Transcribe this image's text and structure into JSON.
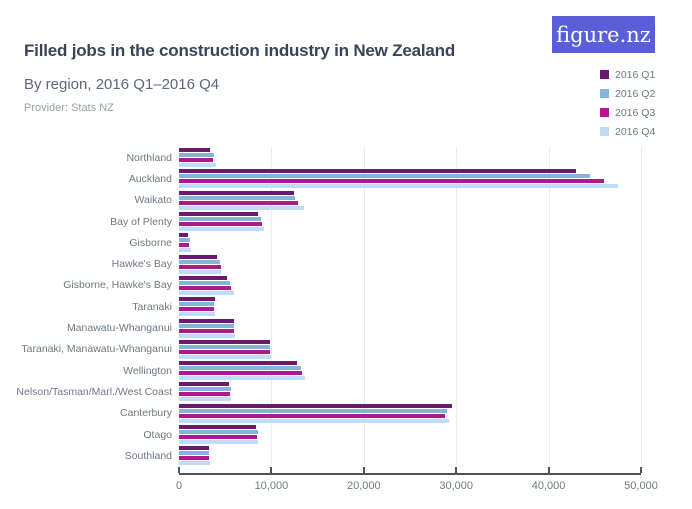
{
  "header": {
    "title": "Filled jobs in the construction industry in New Zealand",
    "subtitle": "By region, 2016 Q1–2016 Q4",
    "provider": "Provider: Stats NZ",
    "logo_text": "figure.nz"
  },
  "colors": {
    "logo_bg": "#5A5ED8",
    "title_text": "#3A4458",
    "axis": "#4E535A",
    "gridline": "#ECE9F1",
    "label_text": "#6E7883"
  },
  "chart_data": {
    "type": "bar",
    "orientation": "horizontal",
    "title": "Filled jobs in the construction industry in New Zealand",
    "subtitle": "By region, 2016 Q1–2016 Q4",
    "xlabel": "",
    "ylabel": "",
    "grid": true,
    "legend_position": "top-right",
    "xlim": [
      0,
      50000
    ],
    "x_tick_values": [
      0,
      10000,
      20000,
      30000,
      40000,
      50000
    ],
    "x_tick_labels": [
      "0",
      "10,000",
      "20,000",
      "30,000",
      "40,000",
      "50,000"
    ],
    "categories": [
      "Northland",
      "Auckland",
      "Waikato",
      "Bay of Plenty",
      "Gisborne",
      "Hawke's Bay",
      "Gisborne, Hawke's Bay",
      "Taranaki",
      "Manawatu-Whanganui",
      "Taranaki, Manawatu-Whanganui",
      "Wellington",
      "Nelson/Tasman/Marl./West Coast",
      "Canterbury",
      "Otago",
      "Southland"
    ],
    "series": [
      {
        "name": "2016 Q1",
        "color": "#6A1B6F",
        "values": [
          3400,
          43000,
          12400,
          8600,
          1000,
          4100,
          5200,
          3900,
          5900,
          9800,
          12800,
          5400,
          29500,
          8300,
          3200
        ]
      },
      {
        "name": "2016 Q2",
        "color": "#86B4DB",
        "values": [
          3800,
          44500,
          12600,
          8900,
          1200,
          4400,
          5500,
          3800,
          6000,
          9800,
          13200,
          5600,
          29000,
          8500,
          3300
        ]
      },
      {
        "name": "2016 Q3",
        "color": "#AD1A8D",
        "values": [
          3700,
          46000,
          12900,
          9000,
          1100,
          4500,
          5600,
          3800,
          5900,
          9900,
          13300,
          5500,
          28800,
          8400,
          3200
        ]
      },
      {
        "name": "2016 Q4",
        "color": "#BFDCF3",
        "values": [
          4000,
          47500,
          13500,
          9200,
          1300,
          4500,
          5900,
          3900,
          6100,
          10000,
          13600,
          5600,
          29200,
          8600,
          3400
        ]
      }
    ]
  }
}
